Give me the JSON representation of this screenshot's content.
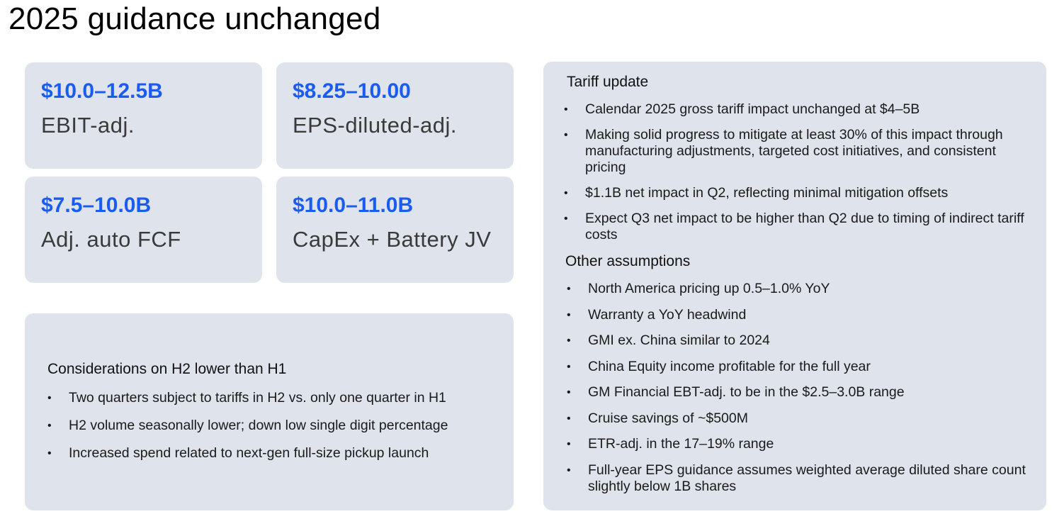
{
  "title": "2025 guidance unchanged",
  "metrics": [
    {
      "value": "$10.0–12.5B",
      "label": "EBIT-adj."
    },
    {
      "value": "$8.25–10.00",
      "label": "EPS-diluted-adj."
    },
    {
      "value": "$7.5–10.0B",
      "label": "Adj. auto FCF"
    },
    {
      "value": "$10.0–11.0B",
      "label": "CapEx + Battery JV"
    }
  ],
  "considerations": {
    "heading": "Considerations on H2 lower than H1",
    "items": [
      "Two quarters subject to tariffs in H2 vs. only one quarter in H1",
      "H2 volume seasonally lower; down low single digit percentage",
      "Increased spend related to next-gen full-size pickup launch"
    ]
  },
  "tariff": {
    "heading": "Tariff update",
    "items": [
      "Calendar 2025 gross tariff impact unchanged at $4–5B",
      "Making solid progress to mitigate at least 30% of this impact through manufacturing adjustments, targeted cost initiatives, and consistent pricing",
      "$1.1B net impact in Q2, reflecting minimal mitigation offsets",
      "Expect Q3 net impact to be higher than Q2 due to timing of indirect tariff costs"
    ]
  },
  "assumptions": {
    "heading": "Other assumptions",
    "items": [
      "North America pricing up 0.5–1.0% YoY",
      "Warranty a YoY headwind",
      "GMI ex. China similar to 2024",
      "China Equity income profitable for the full year",
      "GM Financial EBT-adj. to be in the $2.5–3.0B range",
      "Cruise savings of ~$500M",
      "ETR-adj. in the 17–19% range",
      "Full-year EPS guidance assumes weighted average diluted share count slightly below 1B shares"
    ]
  },
  "colors": {
    "accent": "#1a5cf0",
    "card_background": "#dfe3ec"
  }
}
